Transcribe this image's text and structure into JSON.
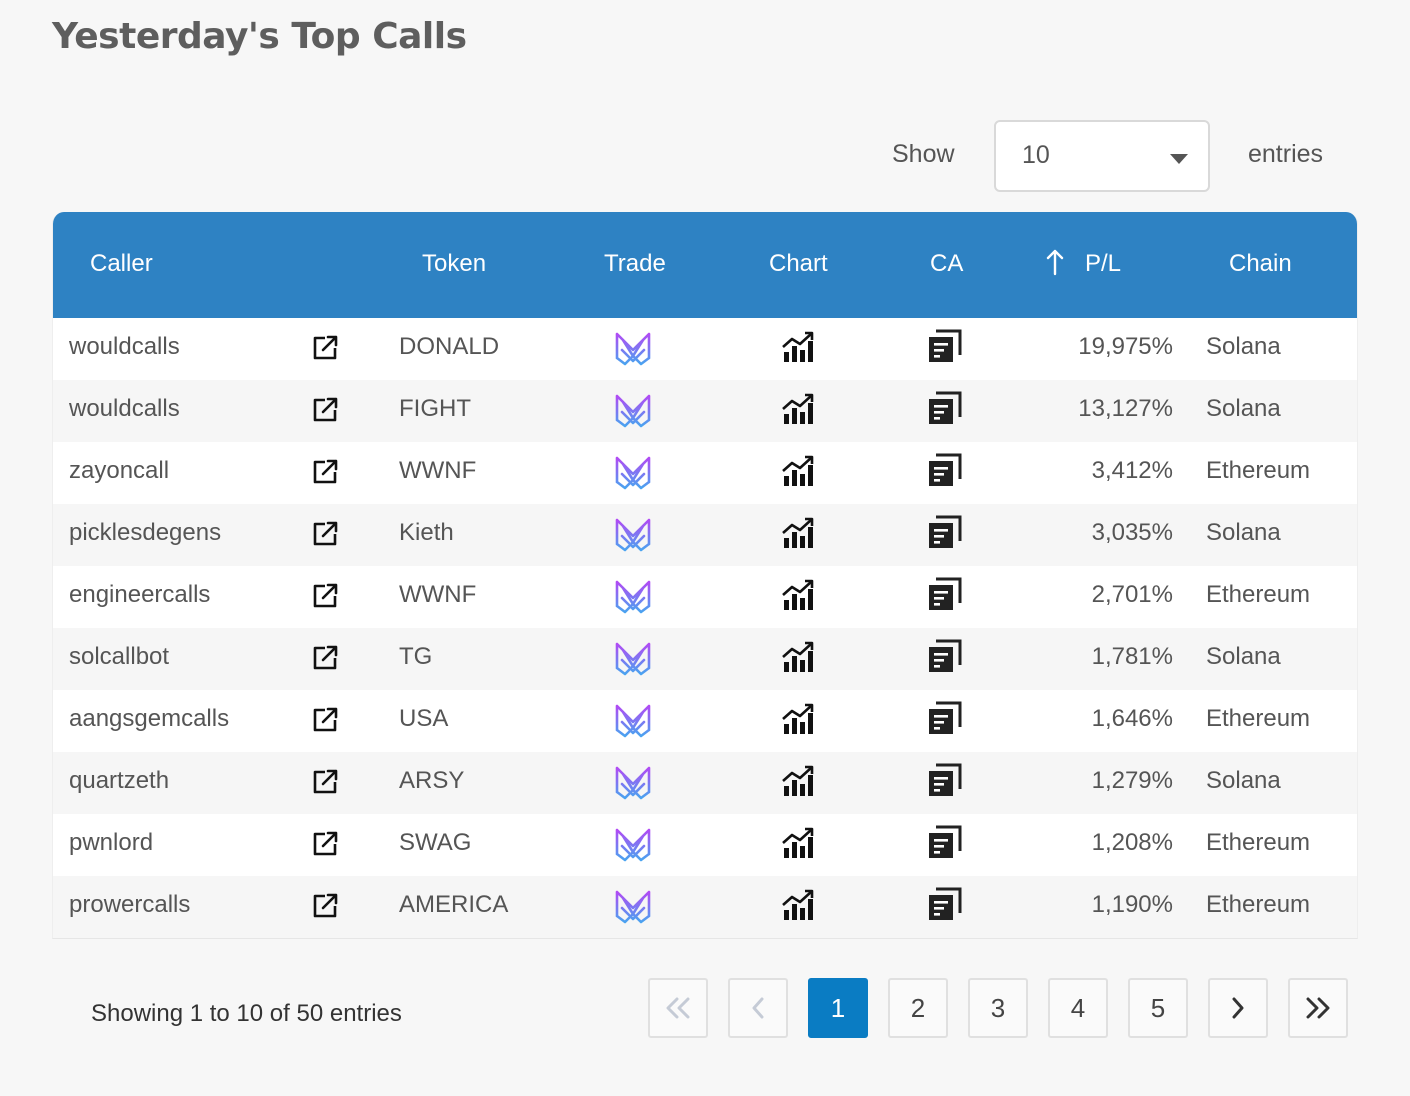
{
  "page": {
    "title": "Yesterday's Top Calls"
  },
  "length": {
    "show_label": "Show",
    "value": "10",
    "entries_label": "entries"
  },
  "columns": {
    "caller": "Caller",
    "token": "Token",
    "trade": "Trade",
    "chart": "Chart",
    "ca": "CA",
    "pl": "P/L",
    "chain": "Chain"
  },
  "rows": [
    {
      "caller": "wouldcalls",
      "token": "DONALD",
      "pl": "19,975%",
      "chain": "Solana"
    },
    {
      "caller": "wouldcalls",
      "token": "FIGHT",
      "pl": "13,127%",
      "chain": "Solana"
    },
    {
      "caller": "zayoncall",
      "token": "WWNF",
      "pl": "3,412%",
      "chain": "Ethereum"
    },
    {
      "caller": "picklesdegens",
      "token": "Kieth",
      "pl": "3,035%",
      "chain": "Solana"
    },
    {
      "caller": "engineercalls",
      "token": "WWNF",
      "pl": "2,701%",
      "chain": "Ethereum"
    },
    {
      "caller": "solcallbot",
      "token": "TG",
      "pl": "1,781%",
      "chain": "Solana"
    },
    {
      "caller": "aangsgemcalls",
      "token": "USA",
      "pl": "1,646%",
      "chain": "Ethereum"
    },
    {
      "caller": "quartzeth",
      "token": "ARSY",
      "pl": "1,279%",
      "chain": "Solana"
    },
    {
      "caller": "pwnlord",
      "token": "SWAG",
      "pl": "1,208%",
      "chain": "Ethereum"
    },
    {
      "caller": "prowercalls",
      "token": "AMERICA",
      "pl": "1,190%",
      "chain": "Ethereum"
    }
  ],
  "icons": {
    "external": "external-link-icon",
    "trade": "trade-logo-icon",
    "chart": "chart-icon",
    "ca": "copy-icon",
    "sort": "sort-ascending-icon"
  },
  "info": "Showing 1 to 10 of 50 entries",
  "pagination": {
    "pages": [
      "1",
      "2",
      "3",
      "4",
      "5"
    ],
    "current": "1"
  },
  "colors": {
    "header": "#2e82c3",
    "active_page": "#0a7cc3"
  }
}
